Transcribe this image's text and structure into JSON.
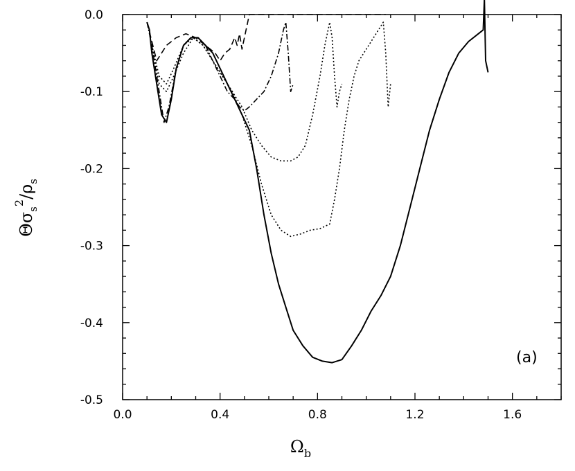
{
  "chart_data": {
    "type": "line",
    "title": "",
    "xlabel": "Ω",
    "xlabel_sub": "b",
    "ylabel": "Θσ",
    "ylabel_sub": "s",
    "ylabel_sup": "2",
    "ylabel_tail": "/ρ",
    "ylabel_tail_sub": "s",
    "xlim": [
      0.0,
      1.8
    ],
    "ylim": [
      -0.5,
      0.0
    ],
    "x_ticks": [
      0.0,
      0.4,
      0.8,
      1.2,
      1.6
    ],
    "x_tick_labels": [
      "0.0",
      "0.4",
      "0.8",
      "1.2",
      "1.6"
    ],
    "y_ticks": [
      0.0,
      -0.1,
      -0.2,
      -0.3,
      -0.4,
      -0.5
    ],
    "y_tick_labels": [
      "0.0",
      "-0.1",
      "-0.2",
      "-0.3",
      "-0.4",
      "-0.5"
    ],
    "grid": false,
    "annotation": "(a)",
    "series": [
      {
        "style": "solid",
        "x": [
          0.1,
          0.11,
          0.12,
          0.14,
          0.16,
          0.18,
          0.2,
          0.22,
          0.25,
          0.28,
          0.31,
          0.34,
          0.37,
          0.4,
          0.43,
          0.46,
          0.49,
          0.52,
          0.55,
          0.58,
          0.61,
          0.64,
          0.67,
          0.7,
          0.74,
          0.78,
          0.82,
          0.86,
          0.9,
          0.94,
          0.98,
          1.02,
          1.06,
          1.1,
          1.14,
          1.18,
          1.22,
          1.26,
          1.3,
          1.34,
          1.38,
          1.42,
          1.46,
          1.48,
          1.485,
          1.49,
          1.5
        ],
        "y": [
          -0.01,
          -0.02,
          -0.05,
          -0.09,
          -0.13,
          -0.14,
          -0.11,
          -0.07,
          -0.04,
          -0.03,
          -0.03,
          -0.04,
          -0.05,
          -0.07,
          -0.09,
          -0.11,
          -0.13,
          -0.15,
          -0.2,
          -0.26,
          -0.31,
          -0.35,
          -0.38,
          -0.41,
          -0.43,
          -0.445,
          -0.45,
          -0.452,
          -0.448,
          -0.43,
          -0.41,
          -0.385,
          -0.365,
          -0.34,
          -0.3,
          -0.25,
          -0.2,
          -0.15,
          -0.11,
          -0.075,
          -0.05,
          -0.035,
          -0.025,
          -0.02,
          0.02,
          -0.06,
          -0.075
        ]
      },
      {
        "style": "dotted",
        "x": [
          0.12,
          0.15,
          0.18,
          0.21,
          0.25,
          0.29,
          0.33,
          0.37,
          0.41,
          0.45,
          0.49,
          0.53,
          0.57,
          0.61,
          0.65,
          0.69,
          0.73,
          0.77,
          0.81,
          0.85,
          0.87,
          0.89,
          0.91,
          0.93,
          0.95,
          0.97,
          0.99,
          1.01,
          1.03,
          1.05,
          1.07,
          1.08,
          1.09,
          1.1
        ],
        "y": [
          -0.04,
          -0.08,
          -0.09,
          -0.07,
          -0.04,
          -0.03,
          -0.04,
          -0.06,
          -0.08,
          -0.1,
          -0.13,
          -0.17,
          -0.22,
          -0.26,
          -0.28,
          -0.288,
          -0.285,
          -0.28,
          -0.278,
          -0.272,
          -0.24,
          -0.2,
          -0.15,
          -0.11,
          -0.08,
          -0.06,
          -0.05,
          -0.04,
          -0.03,
          -0.02,
          -0.01,
          -0.05,
          -0.12,
          -0.09
        ]
      },
      {
        "style": "dotted",
        "x": [
          0.12,
          0.15,
          0.18,
          0.21,
          0.25,
          0.29,
          0.33,
          0.37,
          0.41,
          0.45,
          0.49,
          0.53,
          0.57,
          0.61,
          0.65,
          0.69,
          0.72,
          0.75,
          0.78,
          0.81,
          0.83,
          0.85,
          0.86,
          0.87,
          0.88,
          0.89,
          0.9
        ],
        "y": [
          -0.04,
          -0.09,
          -0.1,
          -0.08,
          -0.05,
          -0.03,
          -0.04,
          -0.06,
          -0.08,
          -0.1,
          -0.12,
          -0.15,
          -0.17,
          -0.185,
          -0.19,
          -0.19,
          -0.185,
          -0.17,
          -0.13,
          -0.08,
          -0.04,
          -0.01,
          -0.03,
          -0.08,
          -0.12,
          -0.1,
          -0.09
        ]
      },
      {
        "style": "dashdot",
        "x": [
          0.1,
          0.12,
          0.15,
          0.17,
          0.19,
          0.22,
          0.25,
          0.28,
          0.31,
          0.34,
          0.37,
          0.4,
          0.43,
          0.46,
          0.48,
          0.5,
          0.52,
          0.55,
          0.58,
          0.61,
          0.64,
          0.66,
          0.67,
          0.68,
          0.69,
          0.7
        ],
        "y": [
          -0.01,
          -0.04,
          -0.1,
          -0.14,
          -0.12,
          -0.07,
          -0.04,
          -0.03,
          -0.03,
          -0.04,
          -0.06,
          -0.08,
          -0.1,
          -0.11,
          -0.12,
          -0.125,
          -0.12,
          -0.11,
          -0.1,
          -0.08,
          -0.05,
          -0.02,
          -0.01,
          -0.05,
          -0.1,
          -0.09
        ]
      },
      {
        "style": "dashed",
        "x": [
          0.1,
          0.14,
          0.18,
          0.22,
          0.26,
          0.3,
          0.34,
          0.38,
          0.4,
          0.42,
          0.44,
          0.46,
          0.47,
          0.48,
          0.49,
          0.5,
          0.52,
          0.56,
          0.6,
          0.66,
          0.72,
          0.8,
          0.88,
          0.96,
          1.04,
          1.08
        ],
        "y": [
          -0.01,
          -0.06,
          -0.04,
          -0.03,
          -0.025,
          -0.03,
          -0.04,
          -0.05,
          -0.06,
          -0.05,
          -0.045,
          -0.03,
          -0.04,
          -0.025,
          -0.045,
          -0.03,
          0.0,
          0.0,
          0.0,
          0.0,
          0.0,
          0.0,
          0.0,
          0.0,
          0.0,
          0.0
        ]
      }
    ]
  }
}
